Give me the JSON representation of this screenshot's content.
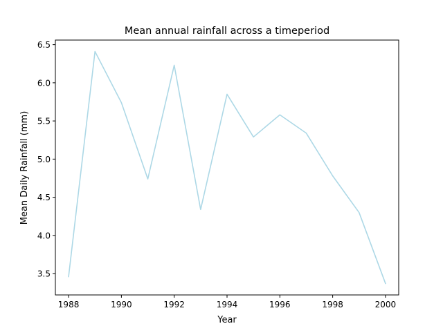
{
  "chart_data": {
    "type": "line",
    "title": "Mean annual rainfall across a timeperiod",
    "xlabel": "Year",
    "ylabel": "Mean Daily Rainfall (mm)",
    "xlim": [
      1987.5,
      2000.5
    ],
    "ylim": [
      3.22,
      6.56
    ],
    "x_ticks": [
      1988,
      1990,
      1992,
      1994,
      1996,
      1998,
      2000
    ],
    "x_tick_labels": [
      "1988",
      "1990",
      "1992",
      "1994",
      "1996",
      "1998",
      "2000"
    ],
    "y_ticks": [
      3.5,
      4.0,
      4.5,
      5.0,
      5.5,
      6.0,
      6.5
    ],
    "y_tick_labels": [
      "3.5",
      "4.0",
      "4.5",
      "5.0",
      "5.5",
      "6.0",
      "6.5"
    ],
    "grid": false,
    "series": [
      {
        "color": "#add8e6",
        "x": [
          1988,
          1989,
          1990,
          1991,
          1992,
          1993,
          1994,
          1995,
          1996,
          1997,
          1998,
          1999,
          2000
        ],
        "y": [
          3.46,
          6.41,
          5.74,
          4.74,
          6.23,
          4.34,
          5.85,
          5.29,
          5.58,
          5.34,
          4.78,
          4.3,
          3.37
        ]
      }
    ]
  }
}
